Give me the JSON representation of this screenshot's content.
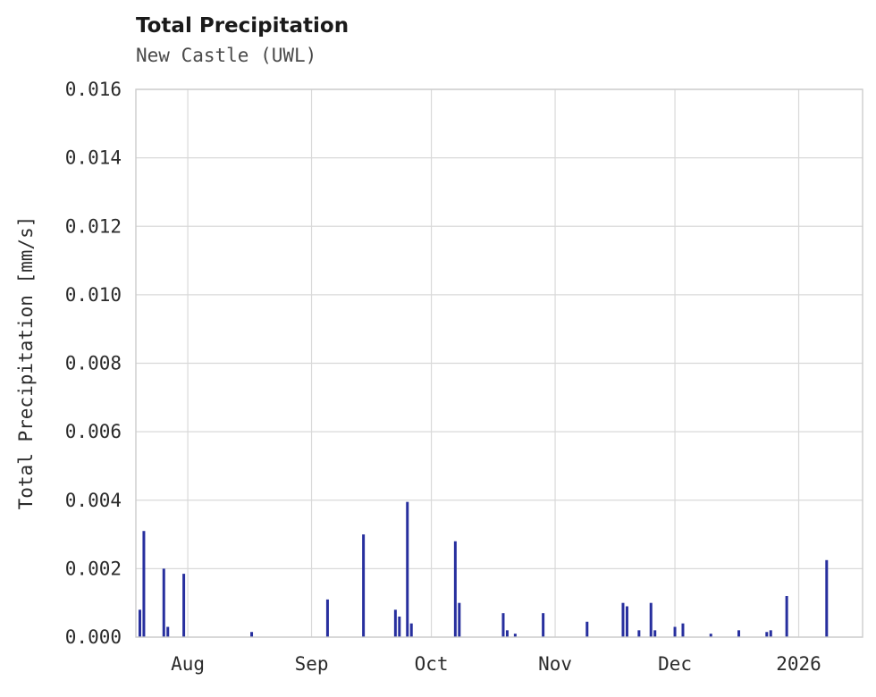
{
  "header": {
    "title": "Total Precipitation",
    "subtitle": "New Castle (UWL)"
  },
  "chart_data": {
    "type": "bar",
    "title": "Total Precipitation",
    "subtitle": "New Castle (UWL)",
    "xlabel": "",
    "ylabel": "Total Precipitation [mm/s]",
    "ylim": [
      0,
      0.016
    ],
    "yticks": [
      "0.000",
      "0.002",
      "0.004",
      "0.006",
      "0.008",
      "0.010",
      "0.012",
      "0.014",
      "0.016"
    ],
    "grid": true,
    "legend": false,
    "x_start": "2025-07-19",
    "x_end": "2026-01-17",
    "xticks": [
      {
        "label": "Aug",
        "date": "2025-08-01"
      },
      {
        "label": "Sep",
        "date": "2025-09-01"
      },
      {
        "label": "Oct",
        "date": "2025-10-01"
      },
      {
        "label": "Nov",
        "date": "2025-11-01"
      },
      {
        "label": "Dec",
        "date": "2025-12-01"
      },
      {
        "label": "2026",
        "date": "2026-01-01"
      }
    ],
    "series": [
      {
        "name": "Total Precipitation",
        "points": [
          {
            "date": "2025-07-20",
            "value": 0.0008
          },
          {
            "date": "2025-07-21",
            "value": 0.0031
          },
          {
            "date": "2025-07-26",
            "value": 0.002
          },
          {
            "date": "2025-07-27",
            "value": 0.0003
          },
          {
            "date": "2025-07-31",
            "value": 0.00185
          },
          {
            "date": "2025-08-17",
            "value": 0.00015
          },
          {
            "date": "2025-09-05",
            "value": 0.0011
          },
          {
            "date": "2025-09-14",
            "value": 0.003
          },
          {
            "date": "2025-09-22",
            "value": 0.0008
          },
          {
            "date": "2025-09-23",
            "value": 0.0006
          },
          {
            "date": "2025-09-25",
            "value": 0.00395
          },
          {
            "date": "2025-09-26",
            "value": 0.0004
          },
          {
            "date": "2025-10-07",
            "value": 0.0028
          },
          {
            "date": "2025-10-08",
            "value": 0.001
          },
          {
            "date": "2025-10-19",
            "value": 0.0007
          },
          {
            "date": "2025-10-20",
            "value": 0.0002
          },
          {
            "date": "2025-10-22",
            "value": 0.0001
          },
          {
            "date": "2025-10-29",
            "value": 0.0007
          },
          {
            "date": "2025-11-09",
            "value": 0.00045
          },
          {
            "date": "2025-11-18",
            "value": 0.001
          },
          {
            "date": "2025-11-19",
            "value": 0.0009
          },
          {
            "date": "2025-11-22",
            "value": 0.0002
          },
          {
            "date": "2025-11-25",
            "value": 0.001
          },
          {
            "date": "2025-11-26",
            "value": 0.0002
          },
          {
            "date": "2025-12-01",
            "value": 0.0003
          },
          {
            "date": "2025-12-03",
            "value": 0.0004
          },
          {
            "date": "2025-12-10",
            "value": 0.0001
          },
          {
            "date": "2025-12-17",
            "value": 0.0002
          },
          {
            "date": "2025-12-24",
            "value": 0.00015
          },
          {
            "date": "2025-12-25",
            "value": 0.0002
          },
          {
            "date": "2025-12-29",
            "value": 0.0012
          },
          {
            "date": "2026-01-08",
            "value": 0.00225
          }
        ]
      }
    ],
    "colors": {
      "bar": "#272f9e",
      "grid": "#d9d9d9",
      "frame": "#cccccc",
      "text": "#2b2b2b",
      "subtitle_text": "#4a4a4a",
      "background": "#ffffff"
    }
  }
}
